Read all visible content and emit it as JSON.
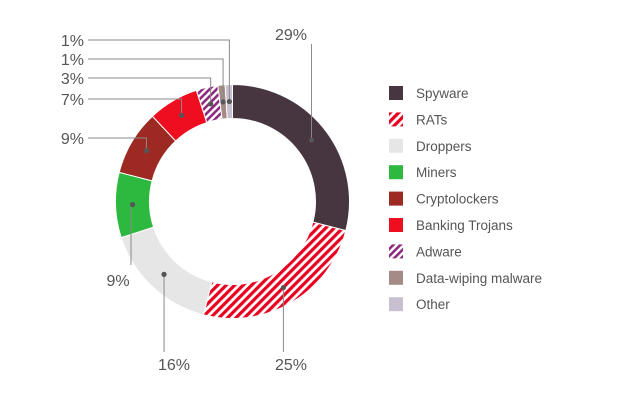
{
  "chart_data": {
    "type": "pie",
    "donut": true,
    "title": "",
    "legend_position": "right",
    "categories": [
      "Spyware",
      "RATs",
      "Droppers",
      "Miners",
      "Cryptolockers",
      "Banking Trojans",
      "Adware",
      "Data-wiping malware",
      "Other"
    ],
    "values": [
      29,
      25,
      16,
      9,
      9,
      7,
      3,
      1,
      1
    ],
    "labels": [
      "29%",
      "25%",
      "16%",
      "9%",
      "9%",
      "7%",
      "3%",
      "1%",
      "1%"
    ],
    "colors": [
      "#47353f",
      "#e8001e",
      "#e6e6e6",
      "#2db83f",
      "#9c2a22",
      "#ef0d20",
      "#8b2b7e",
      "#a58b86",
      "#c8bfd0"
    ],
    "patterns": [
      "solid",
      "hatch",
      "solid",
      "solid",
      "solid",
      "solid",
      "hatch",
      "solid",
      "solid"
    ]
  }
}
